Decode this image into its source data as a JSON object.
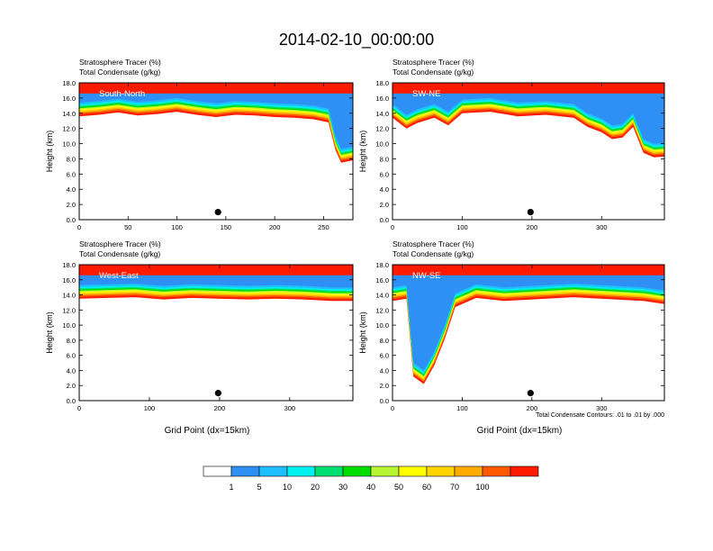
{
  "page": {
    "title": "2014-02-10_00:00:00",
    "footnote": "Total Condensate Contours: .01 to .01 by .000"
  },
  "chart_data": [
    {
      "type": "heatmap",
      "panel": "South-North",
      "label": "South-North",
      "title_line1": "Stratosphere Tracer   (%)",
      "title_line2": "Total Condensate   (g/kg)",
      "xlabel": "",
      "ylabel": "Height (km)",
      "xlim": [
        0,
        280
      ],
      "xticks": [
        0,
        50,
        100,
        150,
        200,
        250
      ],
      "ylim": [
        0,
        18
      ],
      "yticks": [
        "0.0",
        "2.0",
        "4.0",
        "6.0",
        "8.0",
        "10.0",
        "12.0",
        "14.0",
        "16.0",
        "18.0"
      ],
      "tropopause_km": [
        [
          0,
          15.4
        ],
        [
          20,
          15.6
        ],
        [
          40,
          15.9
        ],
        [
          60,
          15.5
        ],
        [
          80,
          15.7
        ],
        [
          100,
          16.0
        ],
        [
          120,
          15.6
        ],
        [
          140,
          15.3
        ],
        [
          160,
          15.6
        ],
        [
          180,
          15.5
        ],
        [
          200,
          15.3
        ],
        [
          220,
          15.2
        ],
        [
          240,
          15.0
        ],
        [
          255,
          14.6
        ],
        [
          262,
          11.0
        ],
        [
          268,
          9.3
        ],
        [
          280,
          9.6
        ]
      ],
      "marker": {
        "x": 142,
        "y_km": 1.0
      }
    },
    {
      "type": "heatmap",
      "panel": "SW-NE",
      "label": "SW-NE",
      "title_line1": "Stratosphere Tracer   (%)",
      "title_line2": "Total Condensate   (g/kg)",
      "xlabel": "",
      "ylabel": "Height (km)",
      "xlim": [
        0,
        390
      ],
      "xticks": [
        0,
        100,
        200,
        300
      ],
      "ylim": [
        0,
        18
      ],
      "yticks": [
        "0.0",
        "2.0",
        "4.0",
        "6.0",
        "8.0",
        "10.0",
        "12.0",
        "14.0",
        "16.0",
        "18.0"
      ],
      "tropopause_km": [
        [
          0,
          15.2
        ],
        [
          20,
          13.8
        ],
        [
          35,
          14.5
        ],
        [
          60,
          15.2
        ],
        [
          80,
          14.2
        ],
        [
          100,
          15.8
        ],
        [
          140,
          16.0
        ],
        [
          180,
          15.4
        ],
        [
          220,
          15.6
        ],
        [
          260,
          15.2
        ],
        [
          280,
          14.0
        ],
        [
          300,
          13.3
        ],
        [
          315,
          12.4
        ],
        [
          330,
          12.6
        ],
        [
          345,
          14.0
        ],
        [
          360,
          10.6
        ],
        [
          375,
          10.0
        ],
        [
          390,
          10.1
        ]
      ],
      "marker": {
        "x": 198,
        "y_km": 1.0
      }
    },
    {
      "type": "heatmap",
      "panel": "West-East",
      "label": "West-East",
      "title_line1": "Stratosphere Tracer   (%)",
      "title_line2": "Total Condensate   (g/kg)",
      "xlabel": "Grid Point (dx=15km)",
      "ylabel": "Height (km)",
      "xlim": [
        0,
        390
      ],
      "xticks": [
        0,
        100,
        200,
        300
      ],
      "ylim": [
        0,
        18
      ],
      "yticks": [
        "0.0",
        "2.0",
        "4.0",
        "6.0",
        "8.0",
        "10.0",
        "12.0",
        "14.0",
        "16.0",
        "18.0"
      ],
      "tropopause_km": [
        [
          0,
          15.3
        ],
        [
          40,
          15.4
        ],
        [
          80,
          15.5
        ],
        [
          120,
          15.2
        ],
        [
          160,
          15.4
        ],
        [
          200,
          15.3
        ],
        [
          240,
          15.2
        ],
        [
          280,
          15.3
        ],
        [
          320,
          15.2
        ],
        [
          360,
          15.0
        ],
        [
          390,
          15.0
        ]
      ],
      "marker": {
        "x": 198,
        "y_km": 1.0
      }
    },
    {
      "type": "heatmap",
      "panel": "NW-SE",
      "label": "NW-SE",
      "title_line1": "Stratosphere Tracer   (%)",
      "title_line2": "Total Condensate   (g/kg)",
      "xlabel": "Grid Point (dx=15km)",
      "ylabel": "Height (km)",
      "xlim": [
        0,
        390
      ],
      "xticks": [
        0,
        100,
        200,
        300
      ],
      "ylim": [
        0,
        18
      ],
      "yticks": [
        "0.0",
        "2.0",
        "4.0",
        "6.0",
        "8.0",
        "10.0",
        "12.0",
        "14.0",
        "16.0",
        "18.0"
      ],
      "tropopause_km": [
        [
          0,
          15.0
        ],
        [
          20,
          15.3
        ],
        [
          30,
          5.0
        ],
        [
          45,
          4.0
        ],
        [
          60,
          6.5
        ],
        [
          75,
          10.0
        ],
        [
          90,
          14.2
        ],
        [
          120,
          15.4
        ],
        [
          160,
          15.0
        ],
        [
          200,
          15.2
        ],
        [
          260,
          15.5
        ],
        [
          320,
          15.2
        ],
        [
          360,
          15.0
        ],
        [
          390,
          14.6
        ]
      ],
      "marker": {
        "x": 198,
        "y_km": 1.0
      }
    }
  ],
  "colorbar": {
    "labels": [
      "1",
      "5",
      "10",
      "20",
      "30",
      "40",
      "50",
      "60",
      "70",
      "100"
    ],
    "colors": [
      "#ffffff",
      "#2e8ff5",
      "#1fbfff",
      "#00f0f0",
      "#00e070",
      "#00dd00",
      "#b8f533",
      "#ffff00",
      "#ffd400",
      "#ffab00",
      "#ff5a00",
      "#ff1a00"
    ]
  }
}
